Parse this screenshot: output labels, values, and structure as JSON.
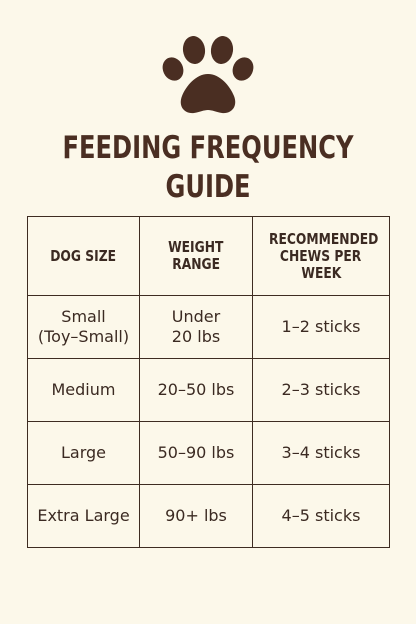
{
  "logo": {
    "icon": "paw-print-icon",
    "color": "#4a2e22"
  },
  "title": {
    "line1": "FEEDING FREQUENCY",
    "line2": "GUIDE"
  },
  "table": {
    "headers": {
      "dog_size": "DOG SIZE",
      "weight_range_1": "WEIGHT",
      "weight_range_2": "RANGE",
      "chews_1": "RECOMMENDED",
      "chews_2": "CHEWS PER",
      "chews_3": "WEEK"
    },
    "rows": [
      {
        "size_1": "Small",
        "size_2": "(Toy–Small)",
        "weight_1": "Under",
        "weight_2": "20 lbs",
        "chews": "1–2 sticks"
      },
      {
        "size_1": "Medium",
        "weight_1": "20–50 lbs",
        "chews": "2–3 sticks"
      },
      {
        "size_1": "Large",
        "weight_1": "50–90 lbs",
        "chews": "3–4 sticks"
      },
      {
        "size_1": "Extra Large",
        "weight_1": "90+ lbs",
        "chews": "4–5 sticks"
      }
    ]
  },
  "colors": {
    "background": "#fcf8ea",
    "text": "#3b2a22",
    "border": "#3e2c22"
  }
}
